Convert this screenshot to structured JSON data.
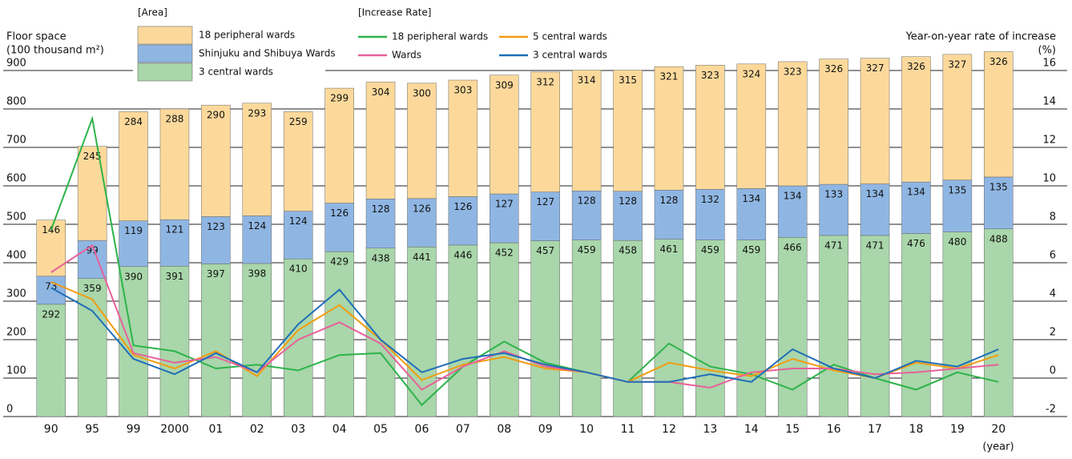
{
  "chart_data": {
    "type": "combo",
    "ylabel": [
      "Floor space",
      "(100 thousand m²)"
    ],
    "y2label": [
      "Year-on-year rate of increase",
      "(%)"
    ],
    "xlabel": "(year)",
    "legend_titles": [
      "[Area]",
      "[Increase Rate]"
    ],
    "categories": [
      "90",
      "95",
      "99",
      "2000",
      "01",
      "02",
      "03",
      "04",
      "05",
      "06",
      "07",
      "08",
      "09",
      "10",
      "11",
      "12",
      "13",
      "14",
      "15",
      "16",
      "17",
      "18",
      "19",
      "20"
    ],
    "ylim": [
      0,
      900
    ],
    "yticks": [
      0,
      100,
      200,
      300,
      400,
      500,
      600,
      700,
      800,
      900
    ],
    "y2lim": [
      -2,
      16
    ],
    "y2ticks": [
      -2,
      0,
      2,
      4,
      6,
      8,
      10,
      12,
      14,
      16
    ],
    "series": [
      {
        "name": "3 central wards",
        "color": "#a9d6aa",
        "values": [
          292,
          359,
          390,
          391,
          397,
          398,
          410,
          429,
          438,
          441,
          446,
          452,
          457,
          459,
          458,
          461,
          459,
          459,
          466,
          471,
          471,
          476,
          480,
          488
        ]
      },
      {
        "name": "Shinjuku and Shibuya Wards",
        "color": "#8fb6e3",
        "values": [
          73,
          99,
          119,
          121,
          123,
          124,
          124,
          126,
          128,
          126,
          126,
          127,
          127,
          128,
          128,
          128,
          132,
          134,
          134,
          133,
          134,
          134,
          135,
          135
        ]
      },
      {
        "name": "18 peripheral wards",
        "color": "#fcd99b",
        "values": [
          146,
          245,
          284,
          288,
          290,
          293,
          259,
          299,
          304,
          300,
          303,
          309,
          312,
          314,
          315,
          321,
          323,
          324,
          323,
          326,
          327,
          326,
          327,
          326
        ]
      },
      {
        "name": "18 peripheral wards",
        "color": "#2db34a",
        "axis": "y2",
        "values": [
          7.7,
          13.5,
          1.7,
          1.4,
          0.5,
          0.7,
          0.4,
          1.2,
          1.3,
          -1.4,
          0.6,
          1.9,
          0.8,
          0.3,
          -0.2,
          1.8,
          0.6,
          0.2,
          -0.6,
          0.7,
          0,
          -0.6,
          0.3,
          -0.2
        ]
      },
      {
        "name": "5 central wards",
        "color": "#f29c11",
        "axis": "y2",
        "values": [
          5.0,
          4.1,
          1.2,
          0.5,
          1.4,
          0.1,
          2.5,
          3.8,
          2.0,
          -0.1,
          0.7,
          1.1,
          0.5,
          0.3,
          -0.2,
          0.8,
          0.4,
          0.1,
          1.0,
          0.4,
          0,
          0.8,
          0.5,
          1.2
        ]
      },
      {
        "name": "Wards",
        "color": "#e8609a",
        "axis": "y2",
        "values": [
          5.5,
          6.9,
          1.3,
          0.8,
          1.1,
          0.3,
          2.0,
          2.9,
          1.8,
          -0.6,
          0.6,
          1.4,
          0.6,
          0.3,
          -0.2,
          -0.2,
          -0.5,
          0.3,
          0.5,
          0.5,
          0.2,
          0.3,
          0.5,
          0.7
        ]
      },
      {
        "name": "3 central wards",
        "color": "#1f6eb8",
        "axis": "y2",
        "values": [
          4.7,
          3.5,
          1.0,
          0.2,
          1.3,
          0.3,
          2.8,
          4.6,
          2.0,
          0.3,
          1.0,
          1.3,
          0.7,
          0.3,
          -0.2,
          -0.2,
          0.2,
          -0.2,
          1.5,
          0.5,
          0,
          0.9,
          0.6,
          1.5
        ]
      }
    ]
  }
}
